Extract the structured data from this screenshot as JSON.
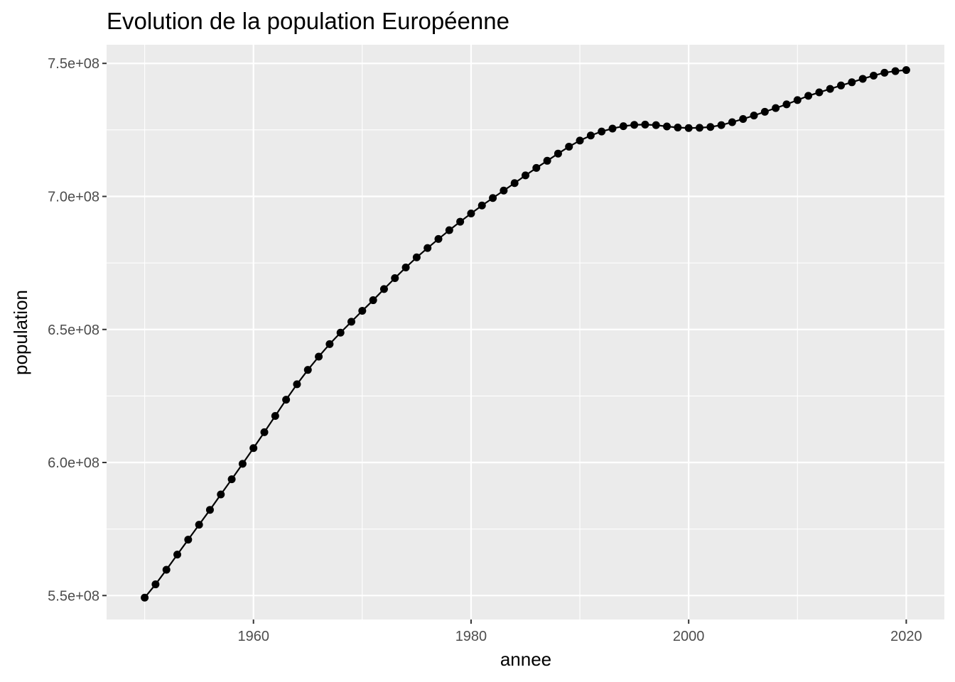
{
  "chart_data": {
    "type": "line",
    "title": "Evolution de la population Européenne",
    "xlabel": "annee",
    "ylabel": "population",
    "xlim": [
      1946.5,
      2023.5
    ],
    "ylim": [
      541000000,
      757000000
    ],
    "x_ticks": [
      1960,
      1980,
      2000,
      2020
    ],
    "x_tick_labels": [
      "1960",
      "1980",
      "2000",
      "2020"
    ],
    "y_ticks": [
      550000000,
      600000000,
      650000000,
      700000000,
      750000000
    ],
    "y_tick_labels": [
      "5.5e+08",
      "6.0e+08",
      "6.5e+08",
      "7.0e+08",
      "7.5e+08"
    ],
    "panel_background": "#ebebeb",
    "grid_color": "#ffffff",
    "series_color": "#000000",
    "grid": true,
    "markers": true,
    "x": [
      1950,
      1951,
      1952,
      1953,
      1954,
      1955,
      1956,
      1957,
      1958,
      1959,
      1960,
      1961,
      1962,
      1963,
      1964,
      1965,
      1966,
      1967,
      1968,
      1969,
      1970,
      1971,
      1972,
      1973,
      1974,
      1975,
      1976,
      1977,
      1978,
      1979,
      1980,
      1981,
      1982,
      1983,
      1984,
      1985,
      1986,
      1987,
      1988,
      1989,
      1990,
      1991,
      1992,
      1993,
      1994,
      1995,
      1996,
      1997,
      1998,
      1999,
      2000,
      2001,
      2002,
      2003,
      2004,
      2005,
      2006,
      2007,
      2008,
      2009,
      2010,
      2011,
      2012,
      2013,
      2014,
      2015,
      2016,
      2017,
      2018,
      2019,
      2020
    ],
    "y": [
      549200000,
      554200000,
      559700000,
      565400000,
      571000000,
      576600000,
      582200000,
      588000000,
      593700000,
      599500000,
      605400000,
      611400000,
      617500000,
      623600000,
      629400000,
      634800000,
      639800000,
      644500000,
      648800000,
      652900000,
      657000000,
      661000000,
      665200000,
      669300000,
      673300000,
      677100000,
      680600000,
      684000000,
      687300000,
      690500000,
      693600000,
      696600000,
      699400000,
      702200000,
      705000000,
      707900000,
      710700000,
      713400000,
      716100000,
      718700000,
      721000000,
      722900000,
      724400000,
      725500000,
      726400000,
      726900000,
      727000000,
      726800000,
      726300000,
      725900000,
      725700000,
      725800000,
      726100000,
      726800000,
      727900000,
      729100000,
      730400000,
      731800000,
      733200000,
      734600000,
      736200000,
      737800000,
      739100000,
      740400000,
      741700000,
      742900000,
      744200000,
      745400000,
      746500000,
      747100000,
      747500000
    ]
  }
}
